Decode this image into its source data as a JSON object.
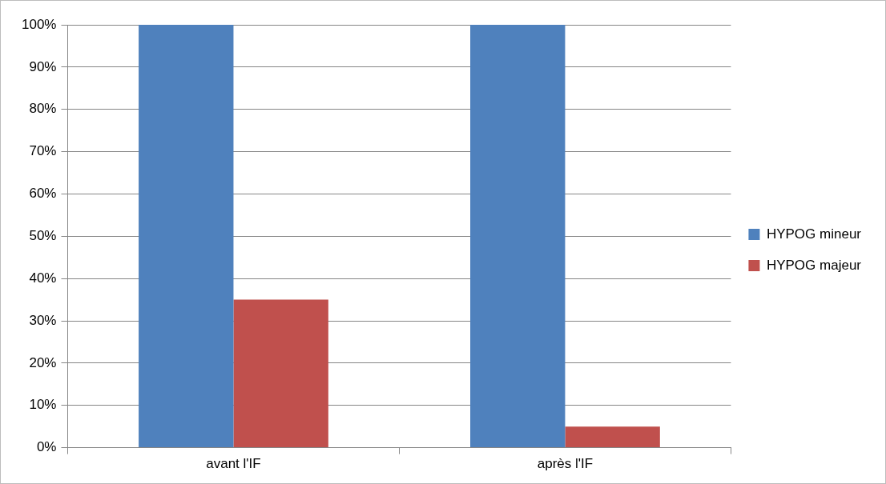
{
  "chart_data": {
    "type": "bar",
    "categories": [
      "avant l'IF",
      "après l'IF"
    ],
    "series": [
      {
        "name": "HYPOG mineur",
        "color": "#4f81bd",
        "values": [
          100,
          100
        ]
      },
      {
        "name": "HYPOG majeur",
        "color": "#c0504d",
        "values": [
          35,
          5
        ]
      }
    ],
    "ylim": [
      0,
      100
    ],
    "yticks": [
      {
        "value": 0,
        "label": "0%"
      },
      {
        "value": 10,
        "label": "10%"
      },
      {
        "value": 20,
        "label": "20%"
      },
      {
        "value": 30,
        "label": "30%"
      },
      {
        "value": 40,
        "label": "40%"
      },
      {
        "value": 50,
        "label": "50%"
      },
      {
        "value": 60,
        "label": "60%"
      },
      {
        "value": 70,
        "label": "70%"
      },
      {
        "value": 80,
        "label": "80%"
      },
      {
        "value": 90,
        "label": "90%"
      },
      {
        "value": 100,
        "label": "100%"
      }
    ],
    "grid": "y",
    "legend": "right"
  }
}
